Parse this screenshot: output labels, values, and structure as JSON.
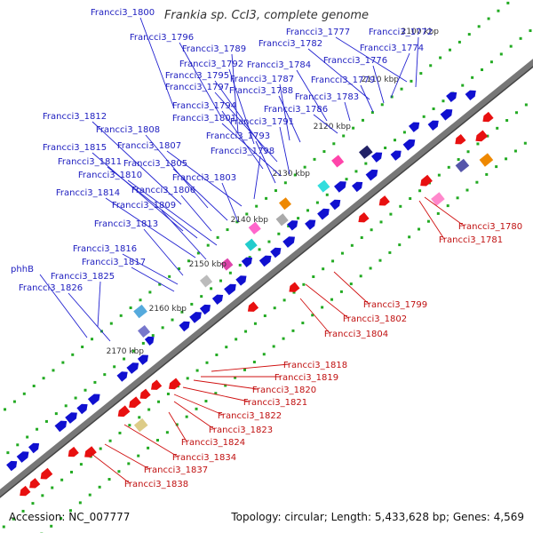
{
  "title": "Frankia sp. CcI3, complete genome",
  "footer": {
    "accession": "Accession: NC_007777",
    "stats": "Topology: circular; Length: 5,433,628 bp; Genes: 4,569"
  },
  "colors": {
    "forward": "#1010d0",
    "reverse": "#e81010",
    "backbone": "#777777",
    "tick": "#22aa22"
  },
  "ticks": [
    {
      "label": "2100 kbp"
    },
    {
      "label": "2110 kbp"
    },
    {
      "label": "2120 kbp"
    },
    {
      "label": "2130 kbp"
    },
    {
      "label": "2140 kbp"
    },
    {
      "label": "2150 kbp"
    },
    {
      "label": "2160 kbp"
    },
    {
      "label": "2170 kbp"
    }
  ],
  "forward_labels": [
    {
      "text": "Francci3_1800"
    },
    {
      "text": "Francci3_1796"
    },
    {
      "text": "Francci3_1789"
    },
    {
      "text": "Francci3_1792"
    },
    {
      "text": "Francci3_1795"
    },
    {
      "text": "Francci3_1797"
    },
    {
      "text": "Francci3_1777"
    },
    {
      "text": "Francci3_1772"
    },
    {
      "text": "Francci3_1782"
    },
    {
      "text": "Francci3_1774"
    },
    {
      "text": "Francci3_1776"
    },
    {
      "text": "Francci3_1784"
    },
    {
      "text": "Francci3_1787"
    },
    {
      "text": "Francci3_1779"
    },
    {
      "text": "Francci3_1788"
    },
    {
      "text": "Francci3_1783"
    },
    {
      "text": "Francci3_1794"
    },
    {
      "text": "Francci3_1786"
    },
    {
      "text": "Francci3_1812"
    },
    {
      "text": "Francci3_1801"
    },
    {
      "text": "Francci3_1791"
    },
    {
      "text": "Francci3_1808"
    },
    {
      "text": "Francci3_1793"
    },
    {
      "text": "Francci3_1815"
    },
    {
      "text": "Francci3_1807"
    },
    {
      "text": "Francci3_1798"
    },
    {
      "text": "Francci3_1811"
    },
    {
      "text": "Francci3_1805"
    },
    {
      "text": "Francci3_1810"
    },
    {
      "text": "Francci3_1803"
    },
    {
      "text": "Francci3_1806"
    },
    {
      "text": "Francci3_1814"
    },
    {
      "text": "Francci3_1809"
    },
    {
      "text": "Francci3_1813"
    },
    {
      "text": "Francci3_1816"
    },
    {
      "text": "Francci3_1817"
    },
    {
      "text": "phhB"
    },
    {
      "text": "Francci3_1825"
    },
    {
      "text": "Francci3_1826"
    }
  ],
  "reverse_labels": [
    {
      "text": "Francci3_1780"
    },
    {
      "text": "Francci3_1781"
    },
    {
      "text": "Francci3_1799"
    },
    {
      "text": "Francci3_1802"
    },
    {
      "text": "Francci3_1804"
    },
    {
      "text": "Francci3_1818"
    },
    {
      "text": "Francci3_1819"
    },
    {
      "text": "Francci3_1820"
    },
    {
      "text": "Francci3_1821"
    },
    {
      "text": "Francci3_1822"
    },
    {
      "text": "Francci3_1823"
    },
    {
      "text": "Francci3_1824"
    },
    {
      "text": "Francci3_1834"
    },
    {
      "text": "Francci3_1837"
    },
    {
      "text": "Francci3_1838"
    }
  ]
}
